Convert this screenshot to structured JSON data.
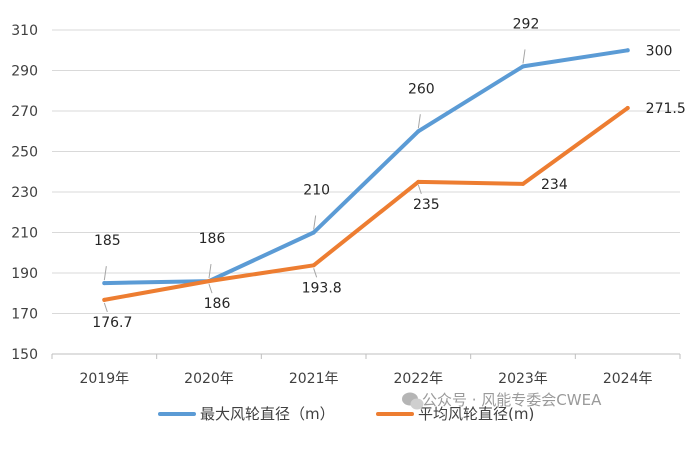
{
  "chart_data": {
    "type": "line",
    "categories": [
      "2019年",
      "2020年",
      "2021年",
      "2022年",
      "2023年",
      "2024年"
    ],
    "series": [
      {
        "name": "最大风轮直径（m）",
        "values": [
          185,
          186,
          210,
          260,
          292,
          300
        ],
        "labels": [
          "185",
          "186",
          "210",
          "260",
          "292",
          "300"
        ],
        "color": "#5b9bd5"
      },
      {
        "name": "平均风轮直径(m)",
        "values": [
          176.7,
          186,
          193.8,
          235,
          234,
          271.5
        ],
        "labels": [
          "176.7",
          "186",
          "193.8",
          "235",
          "234",
          "271.5"
        ],
        "color": "#ed7d31"
      }
    ],
    "ylim": [
      150,
      310
    ],
    "yticks": [
      150,
      170,
      190,
      210,
      230,
      250,
      270,
      290,
      310
    ],
    "ytick_labels": [
      "150",
      "170",
      "190",
      "210",
      "230",
      "250",
      "270",
      "290",
      "310"
    ],
    "grid": true,
    "legend_position": "bottom-left"
  },
  "watermark": {
    "text": "公众号 · 风能专委会CWEA",
    "icon": "wechat-icon"
  }
}
